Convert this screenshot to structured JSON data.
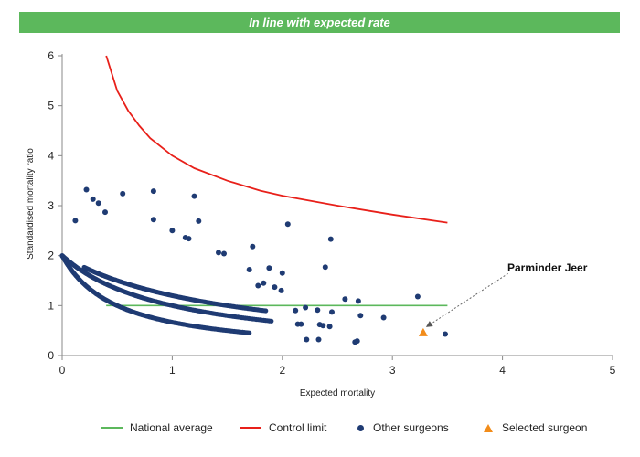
{
  "banner": {
    "text": "In line with expected rate",
    "color": "#5cb85c"
  },
  "legend": {
    "national": "National average",
    "control": "Control limit",
    "others": "Other surgeons",
    "selected": "Selected surgeon"
  },
  "colors": {
    "national": "#5cb85c",
    "control": "#e8201a",
    "others": "#1f3b73",
    "selected": "#f28c1a",
    "axis": "#888888"
  },
  "chart_data": {
    "type": "scatter",
    "xlabel": "Expected mortality",
    "ylabel": "Standardised mortality ratio",
    "xlim": [
      0,
      5
    ],
    "ylim": [
      0,
      6
    ],
    "xticks": [
      0,
      1,
      2,
      3,
      4,
      5
    ],
    "yticks": [
      0,
      1,
      2,
      3,
      4,
      5,
      6
    ],
    "grid": false,
    "legend_position": "bottom",
    "national_average": {
      "y": 1.0,
      "x_range": [
        0.4,
        3.5
      ]
    },
    "control_limit": {
      "x": [
        0.4,
        0.5,
        0.6,
        0.7,
        0.8,
        1.0,
        1.2,
        1.5,
        1.8,
        2.0,
        2.5,
        3.0,
        3.5
      ],
      "y": [
        6.0,
        5.3,
        4.9,
        4.6,
        4.35,
        4.0,
        3.75,
        3.5,
        3.3,
        3.2,
        3.0,
        2.82,
        2.66
      ]
    },
    "curve_bands": [
      {
        "count": 1,
        "x_range": [
          0.0,
          1.7
        ]
      },
      {
        "count": 2,
        "x_range": [
          0.0,
          1.9
        ]
      },
      {
        "count": 3,
        "x_range": [
          0.2,
          1.85
        ]
      }
    ],
    "other_surgeons_scattered": {
      "x": [
        0.12,
        0.22,
        0.28,
        0.33,
        0.39,
        0.55,
        0.83,
        1.2,
        0.83,
        1.24,
        1.0,
        1.12,
        1.15,
        1.42,
        1.47,
        1.73,
        1.88,
        2.05,
        2.44,
        2.39,
        1.83,
        2.0,
        2.21,
        2.22,
        2.32,
        2.37,
        2.43,
        2.34,
        2.57,
        2.69,
        2.71,
        2.92,
        3.23,
        3.48,
        2.14,
        2.17,
        2.45,
        2.33,
        2.66,
        2.68,
        1.7,
        1.78,
        1.93,
        1.99,
        2.12
      ],
      "y": [
        2.7,
        3.32,
        3.13,
        3.05,
        2.87,
        3.24,
        3.29,
        3.19,
        2.72,
        2.69,
        2.5,
        2.36,
        2.34,
        2.06,
        2.04,
        2.18,
        1.75,
        2.63,
        2.33,
        1.77,
        1.45,
        1.65,
        0.96,
        0.32,
        0.91,
        0.6,
        0.58,
        0.62,
        1.13,
        1.09,
        0.8,
        0.76,
        1.18,
        0.43,
        0.63,
        0.63,
        0.87,
        0.32,
        0.27,
        0.29,
        1.72,
        1.4,
        1.37,
        1.3,
        0.9
      ]
    },
    "selected_surgeon": {
      "name": "Parminder Jeer",
      "x": 3.28,
      "y": 0.46
    },
    "annotation": {
      "text": "Parminder Jeer",
      "anchor_x": 4.05,
      "anchor_y": 1.75
    }
  }
}
